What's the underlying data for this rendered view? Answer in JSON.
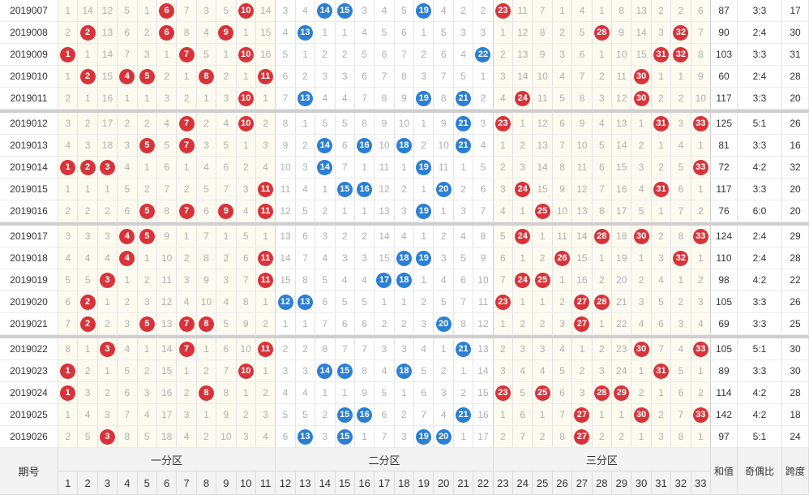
{
  "rows": [
    {
      "period": "2019007",
      "cells": [
        1,
        14,
        12,
        5,
        1,
        {
          "ball": 6
        },
        7,
        3,
        5,
        {
          "ball": 10
        },
        14,
        3,
        4,
        {
          "ball": 14
        },
        {
          "ball": 15
        },
        3,
        4,
        5,
        {
          "ball": 19
        },
        4,
        2,
        2,
        {
          "ball": 23
        },
        11,
        7,
        1,
        4,
        1,
        8,
        13,
        2,
        2,
        6
      ],
      "sum": 87,
      "ratio": "3:3",
      "span": 17
    },
    {
      "period": "2019008",
      "cells": [
        2,
        {
          "ball": 2
        },
        13,
        6,
        2,
        {
          "ball": 6
        },
        8,
        4,
        {
          "ball": 9
        },
        1,
        15,
        4,
        {
          "ball": 13
        },
        1,
        1,
        4,
        5,
        6,
        1,
        5,
        3,
        3,
        1,
        12,
        8,
        2,
        5,
        {
          "ball": 28
        },
        9,
        14,
        3,
        {
          "ball": 32
        },
        7
      ],
      "sum": 90,
      "ratio": "2:4",
      "span": 30
    },
    {
      "period": "2019009",
      "cells": [
        {
          "ball": 1
        },
        1,
        14,
        7,
        3,
        1,
        {
          "ball": 7
        },
        5,
        1,
        {
          "ball": 10
        },
        16,
        5,
        1,
        2,
        2,
        5,
        6,
        7,
        2,
        6,
        4,
        {
          "ball": 22
        },
        2,
        13,
        9,
        3,
        6,
        1,
        10,
        15,
        {
          "ball": 31
        },
        {
          "ball": 32
        },
        8
      ],
      "sum": 103,
      "ratio": "3:3",
      "span": 31
    },
    {
      "period": "2019010",
      "cells": [
        1,
        {
          "ball": 2
        },
        15,
        {
          "ball": 4
        },
        {
          "ball": 5
        },
        2,
        1,
        {
          "ball": 8
        },
        2,
        1,
        {
          "ball": 11
        },
        6,
        2,
        3,
        3,
        6,
        7,
        8,
        3,
        7,
        5,
        1,
        3,
        14,
        10,
        4,
        7,
        2,
        11,
        {
          "ball": 30
        },
        1,
        1,
        9
      ],
      "sum": 60,
      "ratio": "2:4",
      "span": 28
    },
    {
      "period": "2019011",
      "cells": [
        2,
        1,
        16,
        1,
        1,
        3,
        2,
        1,
        3,
        {
          "ball": 10
        },
        1,
        7,
        {
          "ball": 13
        },
        4,
        4,
        7,
        8,
        9,
        {
          "ball": 19
        },
        8,
        {
          "ball": 21
        },
        2,
        4,
        {
          "ball": 24
        },
        11,
        5,
        8,
        3,
        12,
        {
          "ball": 30
        },
        2,
        2,
        10
      ],
      "sum": 117,
      "ratio": "3:3",
      "span": 20
    },
    {
      "period": "2019012",
      "cells": [
        3,
        2,
        17,
        2,
        2,
        4,
        {
          "ball": 7
        },
        2,
        4,
        {
          "ball": 10
        },
        2,
        8,
        1,
        5,
        5,
        8,
        9,
        10,
        1,
        9,
        {
          "ball": 21
        },
        3,
        {
          "ball": 23
        },
        1,
        12,
        6,
        9,
        4,
        13,
        1,
        {
          "ball": 31
        },
        3,
        {
          "ball": 33
        }
      ],
      "sum": 125,
      "ratio": "5:1",
      "span": 26
    },
    {
      "period": "2019013",
      "cells": [
        4,
        3,
        18,
        3,
        {
          "ball": 5
        },
        5,
        {
          "ball": 7
        },
        3,
        5,
        1,
        3,
        9,
        2,
        {
          "ball": 14
        },
        6,
        {
          "ball": 16
        },
        10,
        {
          "ball": 18
        },
        2,
        10,
        {
          "ball": 21
        },
        4,
        1,
        2,
        13,
        7,
        10,
        5,
        14,
        2,
        1,
        4,
        1
      ],
      "sum": 81,
      "ratio": "3:3",
      "span": 16
    },
    {
      "period": "2019014",
      "cells": [
        {
          "ball": 1
        },
        {
          "ball": 2
        },
        {
          "ball": 3
        },
        4,
        1,
        6,
        1,
        4,
        6,
        2,
        4,
        10,
        3,
        {
          "ball": 14
        },
        7,
        1,
        11,
        1,
        {
          "ball": 19
        },
        11,
        1,
        5,
        2,
        3,
        14,
        8,
        11,
        6,
        15,
        3,
        2,
        5,
        {
          "ball": 33
        }
      ],
      "sum": 72,
      "ratio": "4:2",
      "span": 32
    },
    {
      "period": "2019015",
      "cells": [
        1,
        1,
        1,
        5,
        2,
        7,
        2,
        5,
        7,
        3,
        {
          "ball": 11
        },
        11,
        4,
        1,
        {
          "ball": 15
        },
        {
          "ball": 16
        },
        12,
        2,
        1,
        {
          "ball": 20
        },
        2,
        6,
        3,
        {
          "ball": 24
        },
        15,
        9,
        12,
        7,
        16,
        4,
        {
          "ball": 31
        },
        6,
        1
      ],
      "sum": 117,
      "ratio": "3:3",
      "span": 20
    },
    {
      "period": "2019016",
      "cells": [
        2,
        2,
        2,
        6,
        {
          "ball": 5
        },
        8,
        {
          "ball": 7
        },
        6,
        {
          "ball": 9
        },
        4,
        {
          "ball": 11
        },
        12,
        5,
        2,
        1,
        1,
        13,
        3,
        {
          "ball": 19
        },
        1,
        3,
        7,
        4,
        1,
        {
          "ball": 25
        },
        10,
        13,
        8,
        17,
        5,
        1,
        7,
        2
      ],
      "sum": 76,
      "ratio": "6:0",
      "span": 20
    },
    {
      "period": "2019017",
      "cells": [
        3,
        3,
        3,
        {
          "ball": 4
        },
        {
          "ball": 5
        },
        9,
        1,
        7,
        1,
        5,
        1,
        13,
        6,
        3,
        2,
        2,
        14,
        4,
        1,
        2,
        4,
        8,
        5,
        {
          "ball": 24
        },
        1,
        11,
        14,
        {
          "ball": 28
        },
        18,
        {
          "ball": 30
        },
        2,
        8,
        {
          "ball": 33
        }
      ],
      "sum": 124,
      "ratio": "2:4",
      "span": 29
    },
    {
      "period": "2019018",
      "cells": [
        4,
        4,
        4,
        {
          "ball": 4
        },
        1,
        10,
        2,
        8,
        2,
        6,
        {
          "ball": 11
        },
        14,
        7,
        4,
        3,
        3,
        15,
        {
          "ball": 18
        },
        {
          "ball": 19
        },
        3,
        5,
        9,
        6,
        1,
        2,
        {
          "ball": 26
        },
        15,
        1,
        19,
        1,
        3,
        {
          "ball": 32
        },
        1
      ],
      "sum": 110,
      "ratio": "2:4",
      "span": 28
    },
    {
      "period": "2019019",
      "cells": [
        5,
        5,
        {
          "ball": 3
        },
        1,
        2,
        11,
        3,
        9,
        3,
        7,
        {
          "ball": 11
        },
        15,
        8,
        5,
        4,
        4,
        {
          "ball": 17
        },
        {
          "ball": 18
        },
        1,
        4,
        6,
        10,
        7,
        {
          "ball": 24
        },
        {
          "ball": 25
        },
        1,
        16,
        2,
        20,
        2,
        4,
        1,
        2
      ],
      "sum": 98,
      "ratio": "4:2",
      "span": 22
    },
    {
      "period": "2019020",
      "cells": [
        6,
        {
          "ball": 2
        },
        1,
        2,
        3,
        12,
        4,
        10,
        4,
        8,
        1,
        {
          "ball": 12
        },
        {
          "ball": 13
        },
        6,
        5,
        5,
        1,
        1,
        2,
        5,
        7,
        11,
        {
          "ball": 23
        },
        1,
        1,
        2,
        {
          "ball": 27
        },
        {
          "ball": 28
        },
        21,
        3,
        5,
        2,
        3
      ],
      "sum": 105,
      "ratio": "3:3",
      "span": 26
    },
    {
      "period": "2019021",
      "cells": [
        7,
        {
          "ball": 2
        },
        2,
        3,
        {
          "ball": 5
        },
        13,
        {
          "ball": 7
        },
        {
          "ball": 8
        },
        5,
        9,
        2,
        1,
        1,
        7,
        6,
        6,
        2,
        2,
        3,
        {
          "ball": 20
        },
        8,
        12,
        1,
        2,
        2,
        3,
        {
          "ball": 27
        },
        1,
        22,
        4,
        6,
        3,
        4
      ],
      "sum": 69,
      "ratio": "3:3",
      "span": 25
    },
    {
      "period": "2019022",
      "cells": [
        8,
        1,
        {
          "ball": 3
        },
        4,
        1,
        14,
        {
          "ball": 7
        },
        1,
        6,
        10,
        {
          "ball": 11
        },
        2,
        2,
        8,
        7,
        7,
        3,
        3,
        4,
        1,
        {
          "ball": 21
        },
        13,
        2,
        3,
        3,
        4,
        1,
        2,
        23,
        {
          "ball": 30
        },
        7,
        4,
        {
          "ball": 33
        }
      ],
      "sum": 105,
      "ratio": "5:1",
      "span": 30
    },
    {
      "period": "2019023",
      "cells": [
        {
          "ball": 1
        },
        2,
        1,
        5,
        2,
        15,
        1,
        2,
        7,
        {
          "ball": 10
        },
        1,
        3,
        3,
        {
          "ball": 14
        },
        {
          "ball": 15
        },
        8,
        4,
        {
          "ball": 18
        },
        5,
        2,
        1,
        14,
        3,
        4,
        4,
        5,
        2,
        3,
        24,
        1,
        {
          "ball": 31
        },
        5,
        1
      ],
      "sum": 89,
      "ratio": "3:3",
      "span": 30
    },
    {
      "period": "2019024",
      "cells": [
        {
          "ball": 1
        },
        3,
        2,
        6,
        3,
        16,
        2,
        {
          "ball": 8
        },
        8,
        1,
        2,
        4,
        4,
        1,
        1,
        9,
        5,
        1,
        6,
        3,
        2,
        15,
        {
          "ball": 23
        },
        5,
        {
          "ball": 25
        },
        6,
        3,
        {
          "ball": 28
        },
        {
          "ball": 29
        },
        2,
        1,
        6,
        2
      ],
      "sum": 114,
      "ratio": "4:2",
      "span": 28
    },
    {
      "period": "2019025",
      "cells": [
        1,
        4,
        3,
        7,
        4,
        17,
        3,
        1,
        9,
        2,
        3,
        5,
        5,
        2,
        {
          "ball": 15
        },
        {
          "ball": 16
        },
        6,
        2,
        7,
        4,
        {
          "ball": 21
        },
        16,
        1,
        6,
        1,
        7,
        {
          "ball": 27
        },
        1,
        1,
        {
          "ball": 30
        },
        2,
        7,
        {
          "ball": 33
        }
      ],
      "sum": 142,
      "ratio": "4:2",
      "span": 18
    },
    {
      "period": "2019026",
      "cells": [
        2,
        5,
        {
          "ball": 3
        },
        8,
        5,
        18,
        4,
        2,
        10,
        3,
        4,
        6,
        {
          "ball": 13
        },
        3,
        {
          "ball": 15
        },
        1,
        7,
        3,
        {
          "ball": 19
        },
        {
          "ball": 20
        },
        1,
        17,
        2,
        7,
        2,
        8,
        {
          "ball": 27
        },
        2,
        2,
        1,
        3,
        8,
        1
      ],
      "sum": 97,
      "ratio": "5:1",
      "span": 24
    }
  ],
  "footer": {
    "period_label": "期号",
    "zones": [
      "一分区",
      "二分区",
      "三分区"
    ],
    "numbers": [
      1,
      2,
      3,
      4,
      5,
      6,
      7,
      8,
      9,
      10,
      11,
      12,
      13,
      14,
      15,
      16,
      17,
      18,
      19,
      20,
      21,
      22,
      23,
      24,
      25,
      26,
      27,
      28,
      29,
      30,
      31,
      32,
      33
    ],
    "sum_label": "和值",
    "ratio_label": "奇偶比",
    "span_label": "跨度"
  }
}
